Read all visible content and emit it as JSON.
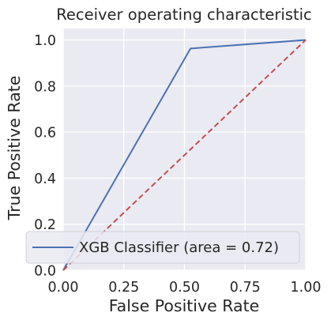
{
  "chart_data": {
    "type": "line",
    "title": "Receiver operating characteristic",
    "xlabel": "False Positive Rate",
    "ylabel": "True Positive Rate",
    "xlim": [
      0.0,
      1.0
    ],
    "ylim": [
      0.0,
      1.05
    ],
    "xticks": [
      "0.00",
      "0.25",
      "0.50",
      "0.75",
      "1.00"
    ],
    "xtick_values": [
      0,
      0.25,
      0.5,
      0.75,
      1.0
    ],
    "yticks": [
      "0.0",
      "0.2",
      "0.4",
      "0.6",
      "0.8",
      "1.0"
    ],
    "ytick_values": [
      0,
      0.2,
      0.4,
      0.6,
      0.8,
      1.0
    ],
    "grid": true,
    "legend_position": "lower-right",
    "series": [
      {
        "name": "XGB Classifier (area = 0.72)",
        "style": "solid",
        "color": "#4c72b0",
        "x": [
          0.0,
          0.525,
          1.0
        ],
        "y": [
          0.0,
          0.963,
          1.0
        ]
      },
      {
        "style": "dashed",
        "color": "#c44e52",
        "x": [
          0.0,
          1.0
        ],
        "y": [
          0.0,
          1.0
        ]
      }
    ],
    "background_color": "#eaeaf2",
    "grid_color": "#ffffff"
  }
}
